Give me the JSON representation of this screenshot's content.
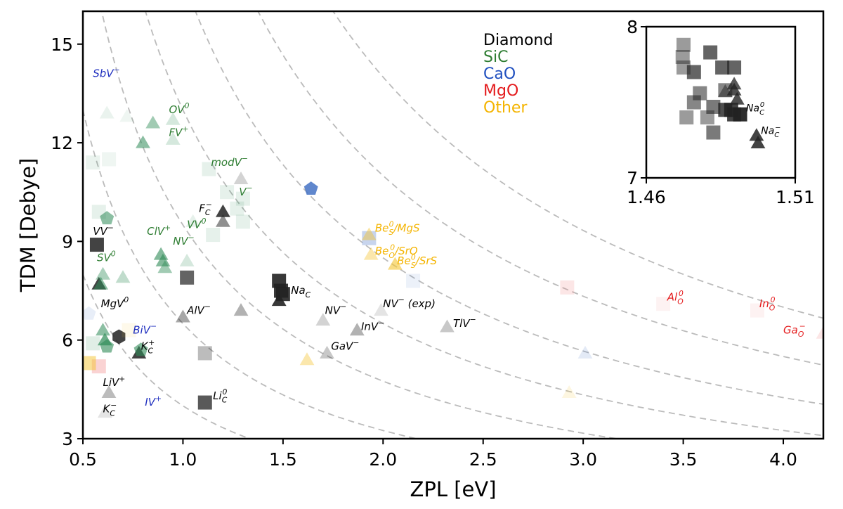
{
  "chart_data": {
    "type": "scatter",
    "xlabel": "ZPL [eV]",
    "ylabel": "TDM [Debye]",
    "xlim": [
      0.5,
      4.2
    ],
    "ylim": [
      3,
      16
    ],
    "xticks": [
      "0.5",
      "1.0",
      "1.5",
      "2.0",
      "2.5",
      "3.0",
      "3.5",
      "4.0"
    ],
    "xtick_values": [
      0.5,
      1.0,
      1.5,
      2.0,
      2.5,
      3.0,
      3.5,
      4.0
    ],
    "yticks": [
      "3",
      "6",
      "9",
      "12",
      "15"
    ],
    "ytick_values": [
      3,
      6,
      9,
      12,
      15
    ],
    "grid": false,
    "legend_position": "top-right",
    "legend": [
      {
        "label": "Diamond",
        "color": "#000000"
      },
      {
        "label": "SiC",
        "color": "#2e7d32"
      },
      {
        "label": "CaO",
        "color": "#1f4fbf"
      },
      {
        "label": "MgO",
        "color": "#e41a1c"
      },
      {
        "label": "Other",
        "color": "#f4b400"
      }
    ],
    "series_colors": {
      "Diamond": "#222222",
      "SiC": "#2e8b57",
      "CaO": "#4472c4",
      "MgO": "#f08080",
      "Other": "#f4c430"
    },
    "reference_curves": {
      "style": "dashed",
      "color": "#bbbbbb",
      "k_values": [
        4,
        6.5,
        9.5,
        13,
        17,
        22,
        28
      ]
    },
    "series": [
      {
        "name": "Diamond",
        "points": [
          {
            "x": 0.57,
            "y": 8.9,
            "marker": "square",
            "alpha": 0.85
          },
          {
            "x": 0.58,
            "y": 7.7,
            "marker": "triangle",
            "alpha": 0.85
          },
          {
            "x": 0.68,
            "y": 6.1,
            "marker": "hexagon",
            "alpha": 0.85
          },
          {
            "x": 0.78,
            "y": 5.6,
            "marker": "triangle",
            "alpha": 0.85
          },
          {
            "x": 0.63,
            "y": 4.4,
            "marker": "triangle",
            "alpha": 0.3
          },
          {
            "x": 0.61,
            "y": 3.8,
            "marker": "triangle",
            "alpha": 0.12
          },
          {
            "x": 1.0,
            "y": 6.7,
            "marker": "triangle",
            "alpha": 0.4
          },
          {
            "x": 1.02,
            "y": 7.9,
            "marker": "square",
            "alpha": 0.7
          },
          {
            "x": 1.11,
            "y": 4.1,
            "marker": "square",
            "alpha": 0.75
          },
          {
            "x": 1.11,
            "y": 5.6,
            "marker": "square",
            "alpha": 0.3
          },
          {
            "x": 1.2,
            "y": 9.9,
            "marker": "triangle",
            "alpha": 0.85
          },
          {
            "x": 1.2,
            "y": 9.6,
            "marker": "triangle",
            "alpha": 0.5
          },
          {
            "x": 1.29,
            "y": 6.9,
            "marker": "triangle",
            "alpha": 0.35
          },
          {
            "x": 1.29,
            "y": 10.9,
            "marker": "triangle",
            "alpha": 0.2
          },
          {
            "x": 1.48,
            "y": 7.8,
            "marker": "square",
            "alpha": 0.9
          },
          {
            "x": 1.49,
            "y": 7.5,
            "marker": "square",
            "alpha": 0.9
          },
          {
            "x": 1.48,
            "y": 7.2,
            "marker": "triangle",
            "alpha": 0.9
          },
          {
            "x": 1.5,
            "y": 7.4,
            "marker": "square",
            "alpha": 0.9
          },
          {
            "x": 1.7,
            "y": 6.6,
            "marker": "triangle",
            "alpha": 0.2
          },
          {
            "x": 1.72,
            "y": 5.6,
            "marker": "triangle",
            "alpha": 0.25
          },
          {
            "x": 1.87,
            "y": 6.3,
            "marker": "triangle",
            "alpha": 0.35
          },
          {
            "x": 1.99,
            "y": 6.9,
            "marker": "triangle",
            "alpha": 0.12
          },
          {
            "x": 2.32,
            "y": 6.4,
            "marker": "triangle",
            "alpha": 0.25
          }
        ]
      },
      {
        "name": "SiC",
        "points": [
          {
            "x": 0.8,
            "y": 12.0,
            "marker": "triangle",
            "alpha": 0.55
          },
          {
            "x": 0.85,
            "y": 12.6,
            "marker": "triangle",
            "alpha": 0.45
          },
          {
            "x": 0.95,
            "y": 12.7,
            "marker": "triangle",
            "alpha": 0.2
          },
          {
            "x": 0.95,
            "y": 12.1,
            "marker": "triangle",
            "alpha": 0.2
          },
          {
            "x": 0.62,
            "y": 9.7,
            "marker": "pentagon",
            "alpha": 0.55
          },
          {
            "x": 0.58,
            "y": 9.9,
            "marker": "square",
            "alpha": 0.12
          },
          {
            "x": 0.55,
            "y": 11.4,
            "marker": "square",
            "alpha": 0.1
          },
          {
            "x": 0.89,
            "y": 8.6,
            "marker": "triangle",
            "alpha": 0.6
          },
          {
            "x": 0.9,
            "y": 8.4,
            "marker": "triangle",
            "alpha": 0.6
          },
          {
            "x": 0.91,
            "y": 8.2,
            "marker": "triangle",
            "alpha": 0.45
          },
          {
            "x": 0.59,
            "y": 7.7,
            "marker": "triangle",
            "alpha": 0.55
          },
          {
            "x": 0.6,
            "y": 8.0,
            "marker": "triangle",
            "alpha": 0.4
          },
          {
            "x": 0.7,
            "y": 7.9,
            "marker": "triangle",
            "alpha": 0.3
          },
          {
            "x": 0.6,
            "y": 6.3,
            "marker": "triangle",
            "alpha": 0.55
          },
          {
            "x": 0.61,
            "y": 6.0,
            "marker": "triangle",
            "alpha": 0.7
          },
          {
            "x": 0.62,
            "y": 5.8,
            "marker": "pentagon",
            "alpha": 0.6
          },
          {
            "x": 0.79,
            "y": 5.7,
            "marker": "pentagon",
            "alpha": 0.6
          },
          {
            "x": 0.55,
            "y": 5.9,
            "marker": "square",
            "alpha": 0.15
          },
          {
            "x": 1.02,
            "y": 8.4,
            "marker": "triangle",
            "alpha": 0.2
          },
          {
            "x": 1.05,
            "y": 9.6,
            "marker": "triangle",
            "alpha": 0.12
          },
          {
            "x": 1.15,
            "y": 9.2,
            "marker": "square",
            "alpha": 0.12
          },
          {
            "x": 1.13,
            "y": 11.2,
            "marker": "square",
            "alpha": 0.12
          },
          {
            "x": 1.27,
            "y": 10.0,
            "marker": "square",
            "alpha": 0.12
          },
          {
            "x": 1.3,
            "y": 10.3,
            "marker": "square",
            "alpha": 0.12
          },
          {
            "x": 1.3,
            "y": 9.6,
            "marker": "square",
            "alpha": 0.12
          },
          {
            "x": 1.22,
            "y": 10.5,
            "marker": "square",
            "alpha": 0.12
          },
          {
            "x": 0.62,
            "y": 12.9,
            "marker": "triangle",
            "alpha": 0.1
          },
          {
            "x": 0.72,
            "y": 12.8,
            "marker": "triangle",
            "alpha": 0.08
          },
          {
            "x": 0.63,
            "y": 11.5,
            "marker": "square",
            "alpha": 0.08
          }
        ]
      },
      {
        "name": "CaO",
        "points": [
          {
            "x": 1.64,
            "y": 10.6,
            "marker": "pentagon",
            "alpha": 0.85
          },
          {
            "x": 1.93,
            "y": 9.1,
            "marker": "square",
            "alpha": 0.3
          },
          {
            "x": 2.15,
            "y": 7.8,
            "marker": "square",
            "alpha": 0.1
          },
          {
            "x": 3.01,
            "y": 5.6,
            "marker": "triangle",
            "alpha": 0.15
          },
          {
            "x": 0.53,
            "y": 6.8,
            "marker": "pentagon",
            "alpha": 0.12
          }
        ]
      },
      {
        "name": "MgO",
        "points": [
          {
            "x": 0.58,
            "y": 5.2,
            "marker": "square",
            "alpha": 0.35
          },
          {
            "x": 2.92,
            "y": 7.6,
            "marker": "square",
            "alpha": 0.2
          },
          {
            "x": 3.4,
            "y": 7.1,
            "marker": "square",
            "alpha": 0.1
          },
          {
            "x": 3.87,
            "y": 6.9,
            "marker": "square",
            "alpha": 0.1
          },
          {
            "x": 4.2,
            "y": 6.2,
            "marker": "triangle",
            "alpha": 0.2
          }
        ]
      },
      {
        "name": "Other",
        "points": [
          {
            "x": 1.93,
            "y": 9.2,
            "marker": "triangle",
            "alpha": 0.45
          },
          {
            "x": 1.94,
            "y": 8.6,
            "marker": "triangle",
            "alpha": 0.4
          },
          {
            "x": 2.06,
            "y": 8.3,
            "marker": "triangle",
            "alpha": 0.6
          },
          {
            "x": 1.62,
            "y": 5.4,
            "marker": "triangle",
            "alpha": 0.4
          },
          {
            "x": 0.53,
            "y": 5.3,
            "marker": "square",
            "alpha": 0.5
          },
          {
            "x": 2.93,
            "y": 4.4,
            "marker": "triangle",
            "alpha": 0.15
          },
          {
            "x": 0.73,
            "y": 6.3,
            "marker": "square",
            "alpha": 0.1
          }
        ]
      }
    ],
    "annotations": [
      {
        "text": "SbV",
        "sup": "−",
        "x": 0.55,
        "y": 14.0,
        "color": "#1f2fbf"
      },
      {
        "text": "OV",
        "sup": "0",
        "x": 0.93,
        "y": 12.9,
        "color": "#2e7d32"
      },
      {
        "text": "FV",
        "sup": "+",
        "x": 0.93,
        "y": 12.2,
        "color": "#2e7d32"
      },
      {
        "text": "modV",
        "sup": "−",
        "x": 1.14,
        "y": 11.3,
        "color": "#2e7d32"
      },
      {
        "text": "V",
        "sup": "−",
        "x": 1.28,
        "y": 10.4,
        "color": "#2e7d32"
      },
      {
        "text": "F",
        "sub": "C",
        "sup": "−",
        "x": 1.08,
        "y": 9.9,
        "color": "#000000"
      },
      {
        "text": "VV",
        "sup": "0",
        "x": 1.02,
        "y": 9.4,
        "color": "#2e7d32"
      },
      {
        "text": "ClV",
        "sup": "+",
        "x": 0.82,
        "y": 9.2,
        "color": "#2e7d32"
      },
      {
        "text": "NV",
        "sup": "−",
        "x": 0.95,
        "y": 8.9,
        "color": "#2e7d32"
      },
      {
        "text": "VV",
        "sup": "−",
        "x": 0.55,
        "y": 9.2,
        "color": "#000000"
      },
      {
        "text": "SV",
        "sup": "0",
        "x": 0.57,
        "y": 8.4,
        "color": "#2e7d32"
      },
      {
        "text": "MgV",
        "sup": "0",
        "x": 0.59,
        "y": 7.0,
        "color": "#000000"
      },
      {
        "text": "AlV",
        "sup": "−",
        "x": 1.02,
        "y": 6.8,
        "color": "#000000"
      },
      {
        "text": "BiV",
        "sup": "−",
        "x": 0.75,
        "y": 6.2,
        "color": "#1f2fbf"
      },
      {
        "text": "K",
        "sub": "C",
        "sup": "+",
        "x": 0.79,
        "y": 5.7,
        "color": "#000000"
      },
      {
        "text": "LiV",
        "sup": "+",
        "x": 0.6,
        "y": 4.6,
        "color": "#000000"
      },
      {
        "text": "K",
        "sub": "C",
        "sup": "−",
        "x": 0.6,
        "y": 3.8,
        "color": "#000000"
      },
      {
        "text": "IV",
        "sup": "+",
        "x": 0.81,
        "y": 4.0,
        "color": "#1f2fbf"
      },
      {
        "text": "Li",
        "sub": "C",
        "sup": "0",
        "x": 1.15,
        "y": 4.2,
        "color": "#000000"
      },
      {
        "text": "Na",
        "sub": "C",
        "x": 1.54,
        "y": 7.4,
        "color": "#000000"
      },
      {
        "text": "NV",
        "sup": "−",
        "x": 1.71,
        "y": 6.8,
        "color": "#000000"
      },
      {
        "text": "NV",
        "sup": "−",
        "tail": " (exp)",
        "x": 2.0,
        "y": 7.0,
        "color": "#000000"
      },
      {
        "text": "InV",
        "sup": "−",
        "x": 1.89,
        "y": 6.3,
        "color": "#000000"
      },
      {
        "text": "GaV",
        "sup": "−",
        "x": 1.74,
        "y": 5.7,
        "color": "#000000"
      },
      {
        "text": "TlV",
        "sup": "−",
        "x": 2.35,
        "y": 6.4,
        "color": "#000000"
      },
      {
        "text": "Be",
        "sub": "S",
        "sup": "0",
        "tail": "/MgS",
        "x": 1.96,
        "y": 9.3,
        "color": "#f4b400"
      },
      {
        "text": "Be",
        "sub": "O",
        "sup": "0",
        "tail": "/SrO",
        "x": 1.96,
        "y": 8.6,
        "color": "#f4b400"
      },
      {
        "text": "Be",
        "sub": "S",
        "sup": "0",
        "tail": "/SrS",
        "x": 2.07,
        "y": 8.3,
        "color": "#f4b400"
      },
      {
        "text": "Al",
        "sub": "O",
        "sup": "0",
        "x": 3.42,
        "y": 7.2,
        "color": "#e41a1c"
      },
      {
        "text": "In",
        "sub": "O",
        "sup": "0",
        "x": 3.88,
        "y": 7.0,
        "color": "#e41a1c"
      },
      {
        "text": "Ga",
        "sub": "O",
        "sup": "−",
        "x": 4.0,
        "y": 6.2,
        "color": "#e41a1c"
      }
    ],
    "inset": {
      "xlim": [
        1.46,
        1.51
      ],
      "ylim": [
        7,
        8
      ],
      "xticks": [
        "1.46",
        "1.51"
      ],
      "xtick_values": [
        1.46,
        1.51
      ],
      "yticks": [
        "7",
        "8"
      ],
      "ytick_values": [
        7,
        8
      ],
      "points": [
        {
          "x": 1.4725,
          "y": 7.88,
          "marker": "square",
          "alpha": 0.45
        },
        {
          "x": 1.4722,
          "y": 7.8,
          "marker": "square",
          "alpha": 0.45
        },
        {
          "x": 1.4725,
          "y": 7.73,
          "marker": "square",
          "alpha": 0.45
        },
        {
          "x": 1.476,
          "y": 7.7,
          "marker": "square",
          "alpha": 0.7
        },
        {
          "x": 1.4815,
          "y": 7.83,
          "marker": "square",
          "alpha": 0.7
        },
        {
          "x": 1.4855,
          "y": 7.73,
          "marker": "square",
          "alpha": 0.7
        },
        {
          "x": 1.4895,
          "y": 7.73,
          "marker": "square",
          "alpha": 0.7
        },
        {
          "x": 1.4865,
          "y": 7.58,
          "marker": "square",
          "alpha": 0.55
        },
        {
          "x": 1.478,
          "y": 7.56,
          "marker": "square",
          "alpha": 0.55
        },
        {
          "x": 1.476,
          "y": 7.5,
          "marker": "square",
          "alpha": 0.55
        },
        {
          "x": 1.4735,
          "y": 7.4,
          "marker": "square",
          "alpha": 0.45
        },
        {
          "x": 1.4805,
          "y": 7.4,
          "marker": "square",
          "alpha": 0.45
        },
        {
          "x": 1.4825,
          "y": 7.3,
          "marker": "square",
          "alpha": 0.6
        },
        {
          "x": 1.4825,
          "y": 7.47,
          "marker": "square",
          "alpha": 0.6
        },
        {
          "x": 1.4865,
          "y": 7.45,
          "marker": "square",
          "alpha": 0.8
        },
        {
          "x": 1.4895,
          "y": 7.42,
          "marker": "square",
          "alpha": 0.85
        },
        {
          "x": 1.4915,
          "y": 7.42,
          "marker": "square",
          "alpha": 0.95
        },
        {
          "x": 1.4885,
          "y": 7.45,
          "marker": "square",
          "alpha": 0.85
        },
        {
          "x": 1.4865,
          "y": 7.57,
          "marker": "triangle",
          "alpha": 0.5
        },
        {
          "x": 1.4895,
          "y": 7.62,
          "marker": "triangle",
          "alpha": 0.75
        },
        {
          "x": 1.4905,
          "y": 7.52,
          "marker": "triangle",
          "alpha": 0.8
        },
        {
          "x": 1.4895,
          "y": 7.58,
          "marker": "triangle",
          "alpha": 0.8
        },
        {
          "x": 1.497,
          "y": 7.28,
          "marker": "triangle",
          "alpha": 0.85
        },
        {
          "x": 1.4975,
          "y": 7.23,
          "marker": "triangle",
          "alpha": 0.85
        }
      ],
      "annotations": [
        {
          "text": "Na",
          "sub": "C",
          "sup": "0",
          "x": 1.4935,
          "y": 7.44,
          "color": "#000000"
        },
        {
          "text": "Na",
          "sub": "C",
          "sup": "−",
          "x": 1.4985,
          "y": 7.29,
          "color": "#000000"
        }
      ]
    }
  }
}
